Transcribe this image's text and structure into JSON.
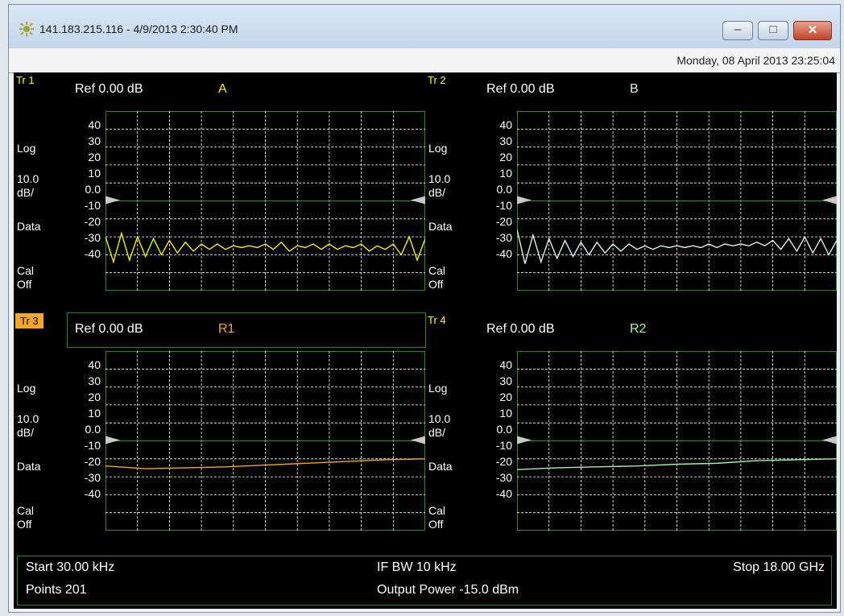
{
  "window": {
    "title": "141.183.215.116 - 4/9/2013 2:30:40 PM",
    "date": "Monday, 08 April 2013 23:25:04",
    "buttons": {
      "minimize": "–",
      "maximize": "□",
      "close": "✕"
    }
  },
  "colors": {
    "grid": "#2a8a2a",
    "gridline": "#ffffff",
    "background": "#000000",
    "active_tab": "#f5a623"
  },
  "side_labels": {
    "log": "Log",
    "scale": "10.0",
    "per": "dB/",
    "data": "Data",
    "cal": "Cal",
    "off": "Off"
  },
  "y_ticks": [
    "40",
    "30",
    "20",
    "10",
    "0.0",
    "-10",
    "-20",
    "-30",
    "-40"
  ],
  "traces": [
    {
      "id": "tr1",
      "label": "Tr 1",
      "ref": "Ref 0.00 dB",
      "name": "A",
      "color": "#f0f000",
      "active": false
    },
    {
      "id": "tr2",
      "label": "Tr 2",
      "ref": "Ref 0.00 dB",
      "name": "B",
      "color": "#d8eef2",
      "active": false
    },
    {
      "id": "tr3",
      "label": "Tr 3",
      "ref": "Ref 0.00 dB",
      "name": "R1",
      "color": "#f5a623",
      "active": true
    },
    {
      "id": "tr4",
      "label": "Tr 4",
      "ref": "Ref 0.00 dB",
      "name": "R2",
      "color": "#a8f0a8",
      "active": false
    }
  ],
  "footer": {
    "start": "Start 30.00 kHz",
    "points": "Points 201",
    "ifbw": "IF BW 10 kHz",
    "power": "Output Power -15.0 dBm",
    "stop": "Stop 18.00 GHz"
  },
  "chart_data": [
    {
      "type": "line",
      "name": "A",
      "ylim": [
        -50,
        50
      ],
      "x": [
        0,
        1,
        2,
        3,
        4,
        5,
        6,
        7,
        8,
        9,
        10,
        11,
        12,
        13,
        14,
        15,
        16,
        17,
        18,
        19,
        20,
        21,
        22,
        23,
        24,
        25,
        26,
        27,
        28,
        29,
        30,
        31,
        32,
        33,
        34,
        35,
        36,
        37,
        38,
        39,
        40
      ],
      "y": [
        -20,
        -34,
        -18,
        -33,
        -20,
        -31,
        -21,
        -30,
        -22,
        -29,
        -23,
        -28,
        -24,
        -27,
        -24,
        -27,
        -25,
        -26,
        -25,
        -26,
        -24,
        -27,
        -23,
        -28,
        -25,
        -26,
        -24,
        -27,
        -24,
        -27,
        -25,
        -26,
        -24,
        -28,
        -25,
        -27,
        -24,
        -30,
        -20,
        -33,
        -21
      ]
    },
    {
      "type": "line",
      "name": "B",
      "ylim": [
        -50,
        50
      ],
      "x": [
        0,
        1,
        2,
        3,
        4,
        5,
        6,
        7,
        8,
        9,
        10,
        11,
        12,
        13,
        14,
        15,
        16,
        17,
        18,
        19,
        20,
        21,
        22,
        23,
        24,
        25,
        26,
        27,
        28,
        29,
        30,
        31,
        32,
        33,
        34,
        35,
        36,
        37,
        38,
        39,
        40
      ],
      "y": [
        -16,
        -35,
        -19,
        -34,
        -21,
        -32,
        -22,
        -31,
        -23,
        -30,
        -23,
        -29,
        -24,
        -28,
        -24,
        -27,
        -25,
        -27,
        -25,
        -26,
        -25,
        -26,
        -25,
        -26,
        -24,
        -26,
        -24,
        -25,
        -24,
        -25,
        -23,
        -25,
        -22,
        -27,
        -21,
        -28,
        -20,
        -29,
        -21,
        -30,
        -22
      ]
    },
    {
      "type": "line",
      "name": "R1",
      "ylim": [
        -50,
        50
      ],
      "x": [
        0,
        5,
        10,
        15,
        20,
        25,
        30,
        35,
        40
      ],
      "y": [
        -14,
        -15.5,
        -15,
        -14.5,
        -13.5,
        -12.5,
        -11.5,
        -10.5,
        -10
      ]
    },
    {
      "type": "line",
      "name": "R2",
      "ylim": [
        -50,
        50
      ],
      "x": [
        0,
        5,
        10,
        15,
        20,
        25,
        30,
        35,
        40
      ],
      "y": [
        -16,
        -15,
        -14.5,
        -14,
        -13,
        -12.5,
        -11,
        -10.5,
        -10
      ]
    }
  ]
}
